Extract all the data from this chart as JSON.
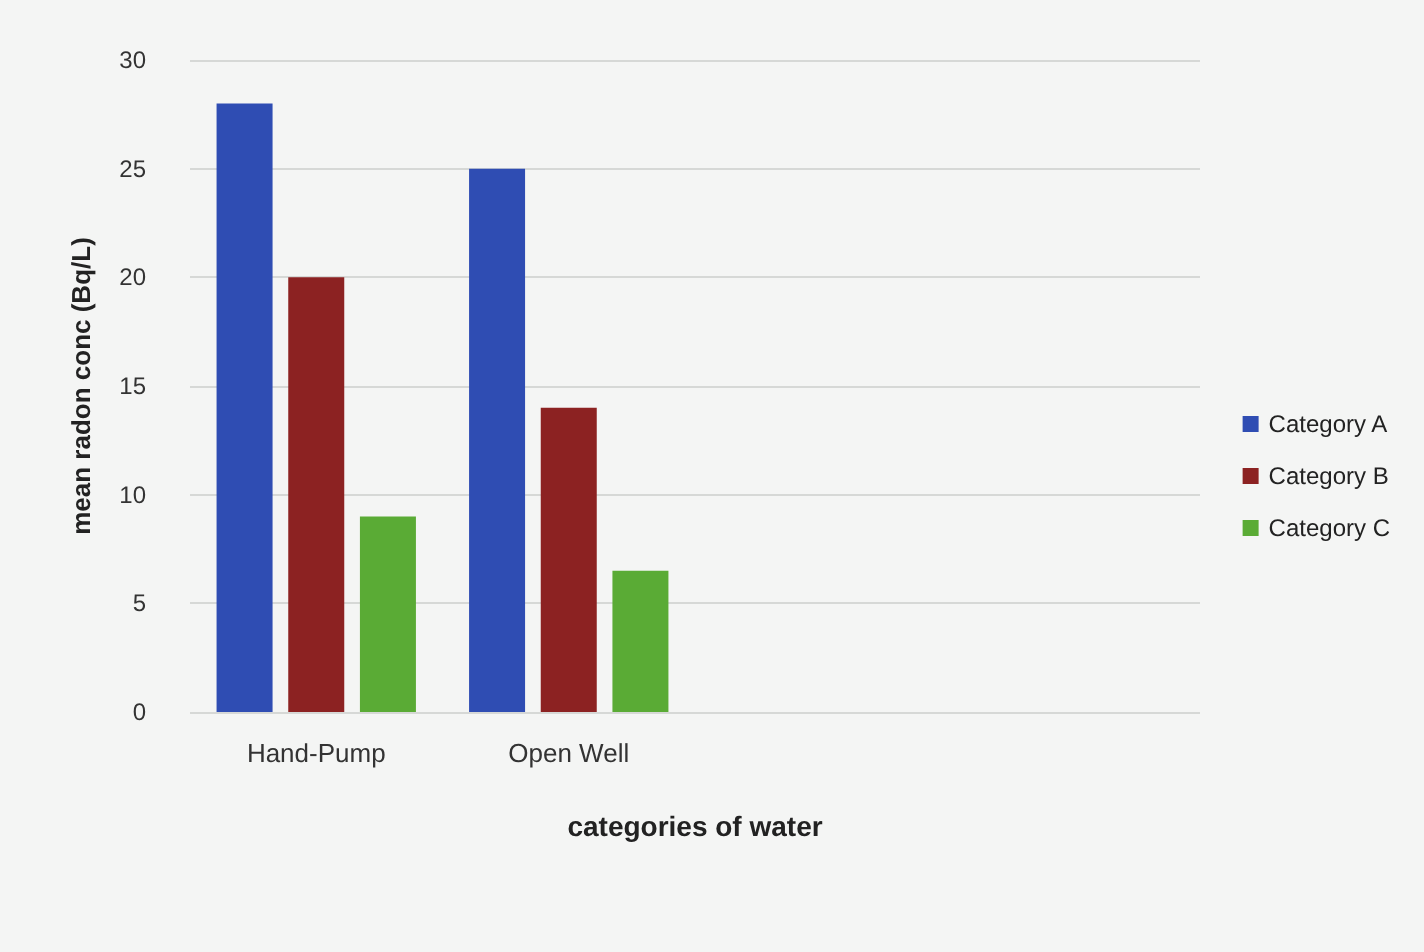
{
  "chart_data": {
    "type": "bar",
    "xlabel": "categories of water",
    "ylabel": "mean radon conc (Bq/L)",
    "categories": [
      "Hand-Pump",
      "Open Well",
      null,
      null
    ],
    "series": [
      {
        "name": "Category A",
        "color": "#2f4db3",
        "values": [
          28,
          25,
          null,
          null
        ]
      },
      {
        "name": "Category B",
        "color": "#8c2222",
        "values": [
          20,
          14,
          null,
          null
        ]
      },
      {
        "name": "Category C",
        "color": "#5aab35",
        "values": [
          9,
          6.5,
          null,
          null
        ]
      }
    ],
    "ylim": [
      0,
      30
    ],
    "yticks": [
      0,
      5,
      10,
      15,
      20,
      25,
      30
    ],
    "grid": "y",
    "legend": "right"
  }
}
